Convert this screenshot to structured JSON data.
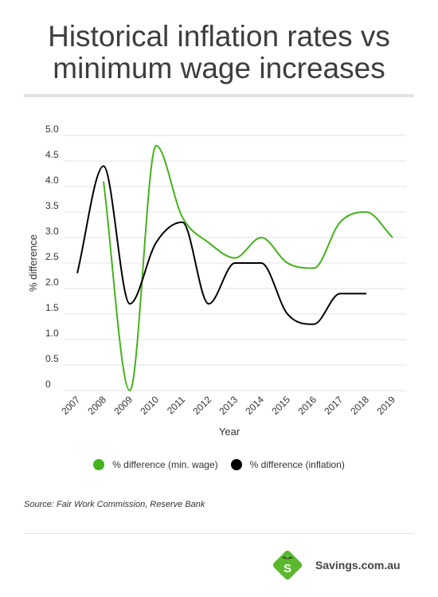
{
  "title_line1": "Historical inflation rates vs",
  "title_line2": "minimum wage increases",
  "source": "Source: Fair Work Commission, Reserve Bank",
  "brand": {
    "name": "Savings.com.au",
    "logo_letter": "S",
    "logo_color": "#5cb82e",
    "leaf_color": "#2e2e2e"
  },
  "colors": {
    "wage": "#44b21b",
    "inflation": "#000000",
    "grid": "#e3e3e3"
  },
  "chart_data": {
    "type": "line",
    "title": "Historical inflation rates vs minimum wage increases",
    "xlabel": "Year",
    "ylabel": "% difference",
    "ylim": [
      0,
      5
    ],
    "yticks": [
      "0",
      "0.5",
      "1.0",
      "1.5",
      "2.0",
      "2.5",
      "3.0",
      "3.5",
      "4.0",
      "4.5",
      "5.0"
    ],
    "x": [
      "2007",
      "2008",
      "2009",
      "2010",
      "2011",
      "2012",
      "2013",
      "2014",
      "2015",
      "2016",
      "2017",
      "2018",
      "2019"
    ],
    "grid": true,
    "legend_position": "bottom",
    "series": [
      {
        "name": "% difference (min. wage)",
        "color": "#44b21b",
        "values": [
          null,
          4.1,
          0.0,
          4.8,
          3.4,
          2.9,
          2.6,
          3.0,
          2.5,
          2.4,
          3.3,
          3.5,
          3.0
        ]
      },
      {
        "name": "% difference (inflation)",
        "color": "#000000",
        "values": [
          2.3,
          4.4,
          1.7,
          2.9,
          3.3,
          1.7,
          2.5,
          2.5,
          1.5,
          1.3,
          1.9,
          1.9,
          null
        ]
      }
    ]
  }
}
